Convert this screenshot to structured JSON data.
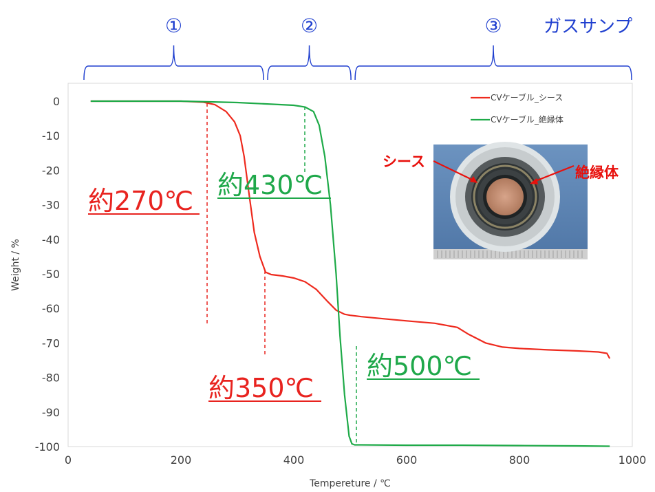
{
  "chart_data": {
    "type": "line",
    "xlabel": "Tempereture / ℃",
    "ylabel": "Weight / %",
    "xlim": [
      0,
      1000
    ],
    "ylim": [
      -100,
      0
    ],
    "x_ticks": [
      "0",
      "200",
      "400",
      "600",
      "800",
      "1000"
    ],
    "y_ticks": [
      "0",
      "-10",
      "-20",
      "-30",
      "-40",
      "-50",
      "-60",
      "-70",
      "-80",
      "-90",
      "-100"
    ],
    "legend_position": "top-right",
    "series": [
      {
        "name": "CVケーブル_シース",
        "color": "#ee2a1e",
        "x": [
          40,
          100,
          200,
          240,
          260,
          280,
          295,
          305,
          312,
          320,
          330,
          340,
          350,
          360,
          380,
          400,
          420,
          440,
          460,
          475,
          490,
          500,
          520,
          560,
          600,
          650,
          690,
          710,
          740,
          770,
          800,
          850,
          900,
          940,
          955,
          960
        ],
        "y": [
          0,
          0,
          0,
          -0.3,
          -1,
          -3,
          -6,
          -10,
          -16,
          -26,
          -38,
          -45,
          -49.5,
          -50.2,
          -50.6,
          -51.2,
          -52.3,
          -54.5,
          -58,
          -60.5,
          -61.7,
          -62,
          -62.4,
          -63,
          -63.6,
          -64.3,
          -65.5,
          -67.5,
          -70,
          -71.2,
          -71.6,
          -72,
          -72.3,
          -72.6,
          -73,
          -74.5
        ]
      },
      {
        "name": "CVケーブル_絶縁体",
        "color": "#1eaa48",
        "x": [
          40,
          100,
          200,
          300,
          350,
          400,
          420,
          435,
          445,
          455,
          465,
          475,
          482,
          490,
          498,
          503,
          508,
          520,
          600,
          700,
          800,
          900,
          960
        ],
        "y": [
          0,
          0,
          0,
          -0.4,
          -0.8,
          -1.2,
          -1.7,
          -3,
          -7,
          -16,
          -30,
          -50,
          -68,
          -85,
          -97,
          -99.2,
          -99.5,
          -99.5,
          -99.6,
          -99.6,
          -99.7,
          -99.8,
          -99.9
        ]
      }
    ],
    "annotations": [
      {
        "text": "約270℃",
        "color": "#e8231f",
        "marker_x": 270
      },
      {
        "text": "約350℃",
        "color": "#e8231f",
        "marker_x": 350
      },
      {
        "text": "約430℃",
        "color": "#1fa84a",
        "marker_x": 430
      },
      {
        "text": "約500℃",
        "color": "#1fa84a",
        "marker_x": 500
      }
    ],
    "regions": [
      {
        "label": "①",
        "x_range": [
          30,
          350
        ]
      },
      {
        "label": "②",
        "x_range": [
          350,
          505
        ]
      },
      {
        "label": "③",
        "x_range": [
          505,
          1000
        ]
      }
    ],
    "region_title": "ガスサンプ",
    "photo_labels": {
      "left": "シース",
      "right": "絶縁体"
    }
  }
}
